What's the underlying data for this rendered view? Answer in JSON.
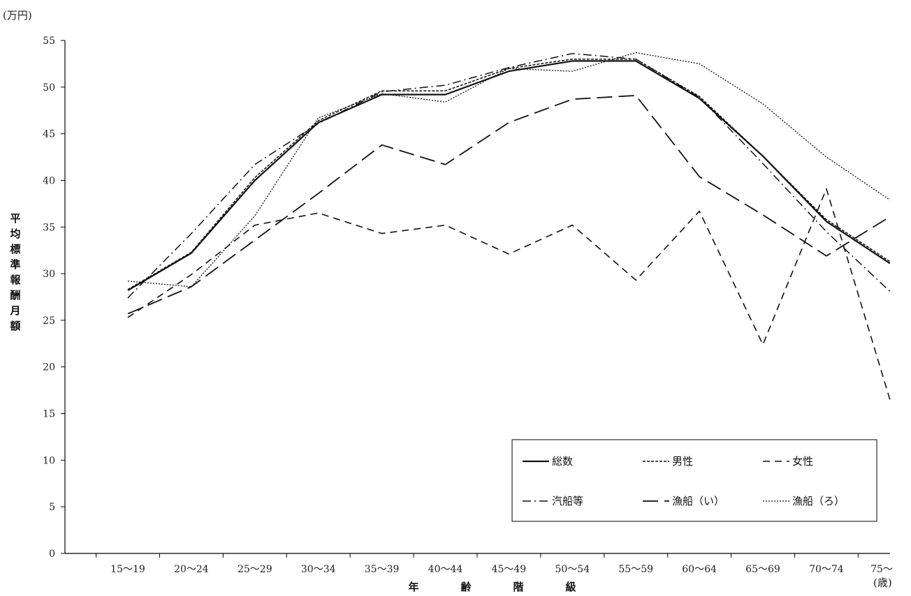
{
  "chart_data": {
    "type": "line",
    "title": "",
    "y_unit": "(万円)",
    "ylabel": "平均標準報酬月額",
    "xlabel": "年齢階級",
    "x_unit": "(歳)",
    "categories": [
      "15〜19",
      "20〜24",
      "25〜29",
      "30〜34",
      "35〜39",
      "40〜44",
      "45〜49",
      "50〜54",
      "55〜59",
      "60〜64",
      "65〜69",
      "70〜74",
      "75〜"
    ],
    "ylim": [
      0,
      55
    ],
    "yticks": [
      0,
      5,
      10,
      15,
      20,
      25,
      30,
      35,
      40,
      45,
      50,
      55
    ],
    "grid": false,
    "legend_position": "bottom-right",
    "series": [
      {
        "name": "総数",
        "style": "solid",
        "values": [
          28.2,
          32.2,
          40.0,
          46.2,
          49.2,
          49.2,
          51.7,
          52.8,
          52.8,
          48.8,
          42.6,
          35.6,
          31.1
        ]
      },
      {
        "name": "男性",
        "style": "dotted-fine",
        "values": [
          28.3,
          32.3,
          40.3,
          46.4,
          49.6,
          49.6,
          52.0,
          53.0,
          53.0,
          49.0,
          42.6,
          35.8,
          31.3
        ]
      },
      {
        "name": "女性",
        "style": "dashed",
        "values": [
          25.3,
          29.9,
          35.2,
          36.5,
          34.3,
          35.2,
          32.1,
          35.2,
          29.3,
          36.7,
          22.4,
          39.1,
          16.5
        ]
      },
      {
        "name": "汽船等",
        "style": "dash-dot",
        "values": [
          27.4,
          34.3,
          41.7,
          46.1,
          49.5,
          50.2,
          52.1,
          53.6,
          53.0,
          48.9,
          41.8,
          34.5,
          28.1
        ]
      },
      {
        "name": "漁船（い）",
        "style": "long-dash",
        "values": [
          25.7,
          28.6,
          33.6,
          38.6,
          43.8,
          41.7,
          46.2,
          48.7,
          49.1,
          40.4,
          36.3,
          31.9,
          36.1
        ]
      },
      {
        "name": "漁船（ろ）",
        "style": "dotted",
        "values": [
          29.2,
          28.6,
          36.2,
          46.7,
          49.3,
          48.4,
          52.0,
          51.7,
          53.7,
          52.5,
          48.2,
          42.5,
          37.9
        ]
      }
    ]
  }
}
